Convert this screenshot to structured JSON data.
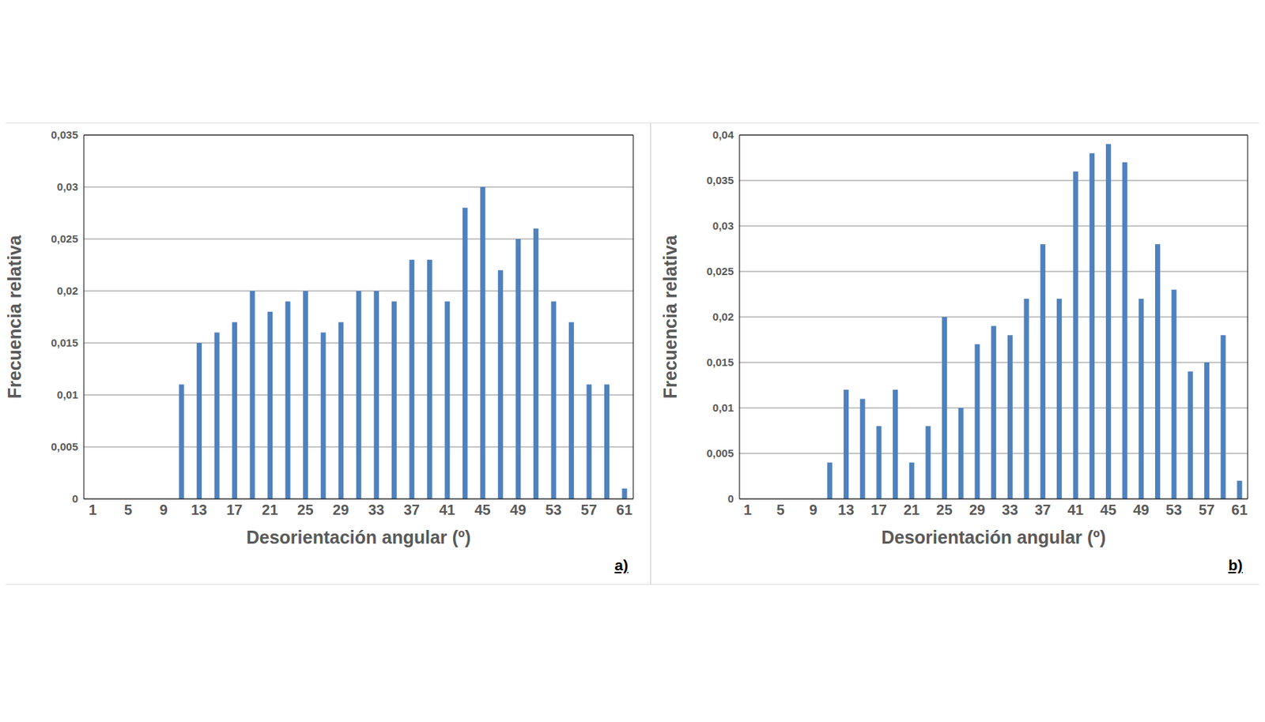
{
  "chart_data": [
    {
      "type": "bar",
      "annotation": "a)",
      "x_label": "Desorientación angular (º)",
      "y_label": "Frecuencia relativa",
      "categories": [
        "1",
        null,
        "5",
        null,
        "9",
        null,
        "13",
        null,
        "17",
        null,
        "21",
        null,
        "25",
        null,
        "29",
        null,
        "33",
        null,
        "37",
        null,
        "41",
        null,
        "45",
        null,
        "49",
        null,
        "53",
        null,
        "57",
        null,
        "61"
      ],
      "values": [
        0,
        0,
        0,
        0,
        0,
        0.011,
        0.015,
        0.016,
        0.017,
        0.02,
        0.018,
        0.019,
        0.02,
        0.016,
        0.017,
        0.02,
        0.02,
        0.019,
        0.023,
        0.023,
        0.019,
        0.028,
        0.03,
        0.022,
        0.025,
        0.026,
        0.019,
        0.017,
        0.011,
        0.011,
        0.001
      ],
      "color": "#4f81bd",
      "ylim": [
        0,
        0.035
      ],
      "yticks": [
        0,
        {
          "value": 0.005,
          "label": "0,005"
        },
        {
          "value": 0.01,
          "label": "0,01"
        },
        {
          "value": 0.015,
          "label": "0,015"
        },
        {
          "value": 0.02,
          "label": "0,02"
        },
        {
          "value": 0.025,
          "label": "0,025"
        },
        {
          "value": 0.03,
          "label": "0,03"
        },
        {
          "value": 0.035,
          "label": "0,035"
        }
      ],
      "grid": true
    },
    {
      "type": "bar",
      "annotation": "b)",
      "x_label": "Desorientación angular (º)",
      "y_label": "Frecuencia relativa",
      "categories": [
        "1",
        null,
        "5",
        null,
        "9",
        null,
        "13",
        null,
        "17",
        null,
        "21",
        null,
        "25",
        null,
        "29",
        null,
        "33",
        null,
        "37",
        null,
        "41",
        null,
        "45",
        null,
        "49",
        null,
        "53",
        null,
        "57",
        null,
        "61"
      ],
      "values": [
        0,
        0,
        0,
        0,
        0,
        0.004,
        0.012,
        0.011,
        0.008,
        0.012,
        0.004,
        0.008,
        0.02,
        0.01,
        0.017,
        0.019,
        0.018,
        0.022,
        0.028,
        0.022,
        0.036,
        0.038,
        0.039,
        0.037,
        0.022,
        0.028,
        0.023,
        0.014,
        0.015,
        0.018,
        0.002
      ],
      "color": "#4f81bd",
      "ylim": [
        0,
        0.04
      ],
      "yticks": [
        0,
        {
          "value": 0.005,
          "label": "0,005"
        },
        {
          "value": 0.01,
          "label": "0,01"
        },
        {
          "value": 0.015,
          "label": "0,015"
        },
        {
          "value": 0.02,
          "label": "0,02"
        },
        {
          "value": 0.025,
          "label": "0,025"
        },
        {
          "value": 0.03,
          "label": "0,03"
        },
        {
          "value": 0.035,
          "label": "0,035"
        },
        {
          "value": 0.04,
          "label": "0,04"
        }
      ],
      "grid": true
    }
  ]
}
